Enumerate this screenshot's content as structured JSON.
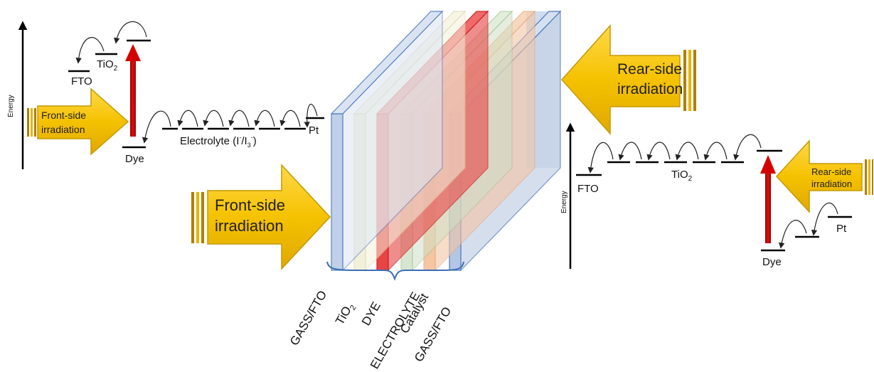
{
  "left_scheme": {
    "energy_label": "Energy",
    "fto_label": "FTO",
    "tio2_label": "TiO",
    "tio2_sub": "2",
    "dye_label": "Dye",
    "electrolyte_prefix": "Electrolyte (I",
    "electrolyte_sup1": "-",
    "electrolyte_mid": "/I",
    "electrolyte_sub": "3",
    "electrolyte_sup2": "-",
    "electrolyte_suffix": ")",
    "pt_label": "Pt",
    "arrow_line1": "Front-side",
    "arrow_line2": "irradiation"
  },
  "center": {
    "front_arrow_line1": "Front-side",
    "front_arrow_line2": "irradiation",
    "rear_arrow_line1": "Rear-side",
    "rear_arrow_line2": "irradiation",
    "layers": [
      {
        "label": "GASS/FTO",
        "color": "#b9cce6"
      },
      {
        "label": "TiO",
        "sub": "2",
        "color": "#f1eed4"
      },
      {
        "label": "DYE",
        "color": "#e53030"
      },
      {
        "label": "ELECTROLYTE",
        "color": "#cfe0c6"
      },
      {
        "label": "Catalyst",
        "color": "#f2b98e"
      },
      {
        "label": "GASS/FTO",
        "color": "#b9cce6"
      }
    ]
  },
  "right_scheme": {
    "energy_label": "Energy",
    "fto_label": "FTO",
    "tio2_label": "TiO",
    "tio2_sub": "2",
    "dye_label": "Dye",
    "pt_label": "Pt",
    "arrow_line1": "Rear-side",
    "arrow_line2": "irradiation"
  },
  "colors": {
    "arrow_fill": "#f5c200",
    "arrow_stroke": "#c49a00",
    "excitation": "#cc0000"
  }
}
